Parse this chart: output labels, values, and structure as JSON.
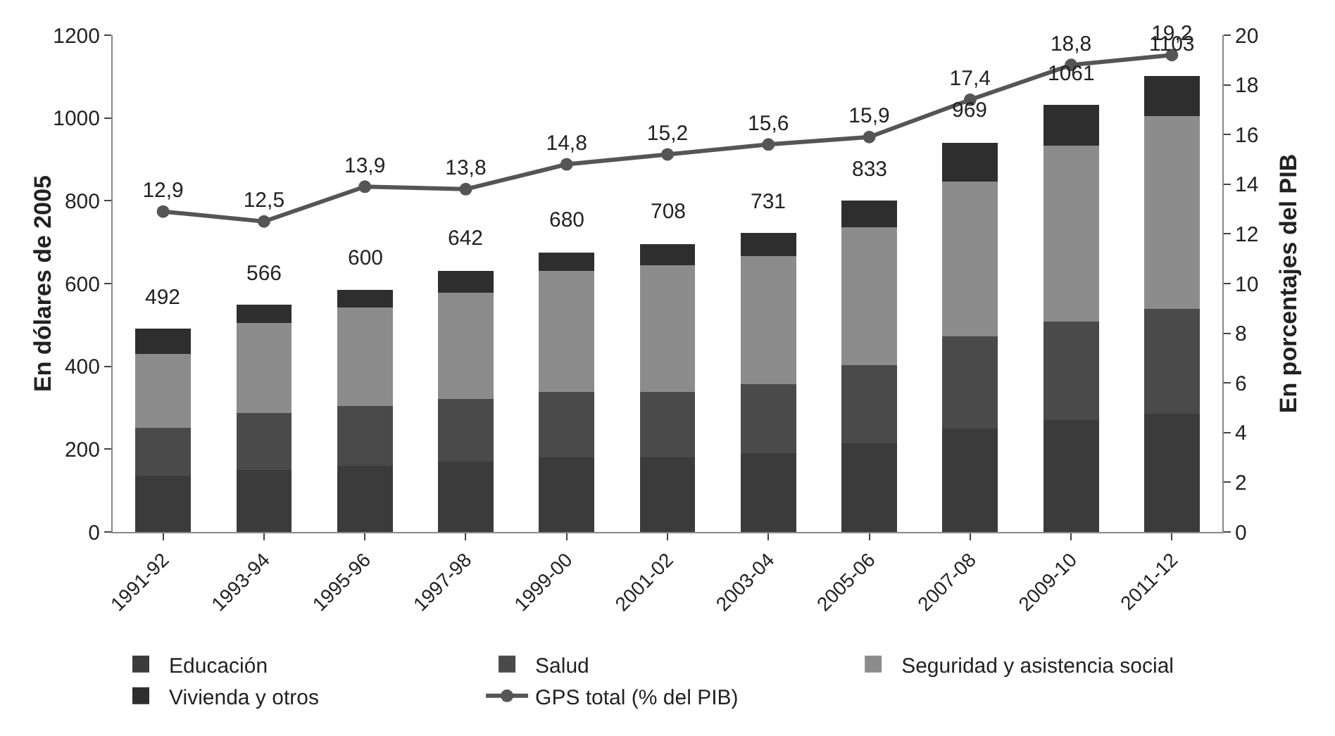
{
  "chart_data": {
    "type": "bar",
    "stacked": true,
    "ylabel": "En dólares de 2005",
    "y2label": "En porcentajes del PIB",
    "categories": [
      "1991-92",
      "1993-94",
      "1995-96",
      "1997-98",
      "1999-00",
      "2001-02",
      "2003-04",
      "2005-06",
      "2007-08",
      "2009-10",
      "2011-12"
    ],
    "series": [
      {
        "name": "Educación",
        "color": "#3b3b3b",
        "values": [
          136,
          150,
          160,
          170,
          180,
          180,
          190,
          215,
          250,
          270,
          285
        ]
      },
      {
        "name": "Salud",
        "color": "#4a4a4a",
        "values": [
          116,
          137,
          144,
          152,
          159,
          159,
          167,
          188,
          223,
          238,
          253
        ]
      },
      {
        "name": "Seguridad y asistencia social",
        "color": "#8c8c8c",
        "values": [
          178,
          218,
          239,
          256,
          292,
          306,
          309,
          333,
          374,
          426,
          466
        ]
      },
      {
        "name": "Vivienda y otros",
        "color": "#2e2e2e",
        "values": [
          61,
          44,
          41,
          53,
          44,
          51,
          56,
          64,
          93,
          97,
          97
        ]
      },
      {
        "name": "GPS total (% del PIB)",
        "type": "line",
        "axis": "y2",
        "color": "#555555",
        "marker": "circle",
        "values": [
          12.9,
          12.5,
          13.9,
          13.8,
          14.8,
          15.2,
          15.6,
          15.9,
          17.4,
          18.8,
          19.2
        ],
        "value_labels": [
          "12,9",
          "12,5",
          "13,9",
          "13,8",
          "14,8",
          "15,2",
          "15,6",
          "15,9",
          "17,4",
          "18,8",
          "19,2"
        ]
      }
    ],
    "annotations": [
      {
        "text": "492",
        "x": "1991-92",
        "y": 491
      },
      {
        "text": "566",
        "x": "1993-94",
        "y": 549
      },
      {
        "text": "600",
        "x": "1995-96",
        "y": 584
      },
      {
        "text": "642",
        "x": "1997-98",
        "y": 631
      },
      {
        "text": "680",
        "x": "1999-00",
        "y": 675
      },
      {
        "text": "708",
        "x": "2001-02",
        "y": 696
      },
      {
        "text": "731",
        "x": "2003-04",
        "y": 722
      },
      {
        "text": "833",
        "x": "2005-06",
        "y": 800
      },
      {
        "text": "969",
        "x": "2007-08",
        "y": 940
      },
      {
        "text": "1061",
        "x": "2009-10",
        "y": 1031
      },
      {
        "text": "1103",
        "x": "2011-12",
        "y": 1101
      }
    ],
    "ylim": [
      0,
      1200
    ],
    "yticks": [
      0,
      200,
      400,
      600,
      800,
      1000,
      1200
    ],
    "y2lim": [
      0,
      20
    ],
    "y2ticks": [
      0,
      2,
      4,
      6,
      8,
      10,
      12,
      14,
      16,
      18,
      20
    ],
    "grid": false,
    "legend": "bottom"
  }
}
